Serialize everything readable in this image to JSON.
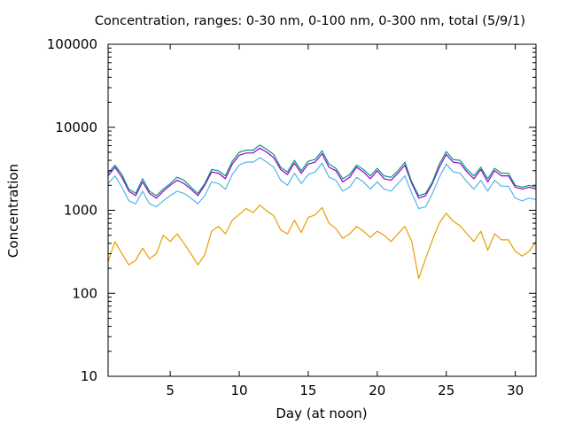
{
  "chart_data": {
    "type": "line",
    "title": "Concentration, ranges: 0-30 nm, 0-100 nm, 0-300 nm, total (5/9/1)",
    "xlabel": "Day (at noon)",
    "ylabel": "Concentration",
    "xlim": [
      0.5,
      31.5
    ],
    "ylim": [
      10,
      100000
    ],
    "yscale": "log",
    "grid": false,
    "x_ticks": [
      5,
      10,
      15,
      20,
      25,
      30
    ],
    "x_tick_labels": [
      "5",
      "10",
      "15",
      "20",
      "25",
      "30"
    ],
    "y_ticks": [
      10,
      100,
      1000,
      10000,
      100000
    ],
    "y_tick_labels": [
      "10",
      "100",
      "1000",
      "10000",
      "100000"
    ],
    "x": [
      0.5,
      1,
      1.5,
      2,
      2.5,
      3,
      3.5,
      4,
      4.5,
      5,
      5.5,
      6,
      6.5,
      7,
      7.5,
      8,
      8.5,
      9,
      9.5,
      10,
      10.5,
      11,
      11.5,
      12,
      12.5,
      13,
      13.5,
      14,
      14.5,
      15,
      15.5,
      16,
      16.5,
      17,
      17.5,
      18,
      18.5,
      19,
      19.5,
      20,
      20.5,
      21,
      21.5,
      22,
      22.5,
      23,
      23.5,
      24,
      24.5,
      25,
      25.5,
      26,
      26.5,
      27,
      27.5,
      28,
      28.5,
      29,
      29.5,
      30,
      30.5,
      31,
      31.5
    ],
    "series": [
      {
        "color": "#9400d3",
        "values": [
          2600,
          3300,
          2500,
          1700,
          1500,
          2200,
          1600,
          1400,
          1700,
          2000,
          2300,
          2100,
          1800,
          1500,
          2000,
          2900,
          2800,
          2400,
          3600,
          4600,
          4900,
          4900,
          5600,
          5000,
          4300,
          3100,
          2700,
          3700,
          2800,
          3600,
          3800,
          4800,
          3300,
          3000,
          2200,
          2500,
          3300,
          2900,
          2400,
          3000,
          2400,
          2300,
          2800,
          3500,
          2100,
          1400,
          1500,
          2100,
          3300,
          4700,
          3800,
          3700,
          2900,
          2400,
          3100,
          2200,
          3000,
          2600,
          2600,
          1900,
          1800,
          1900,
          1800
        ]
      },
      {
        "color": "#009e73",
        "values": [
          2800,
          3500,
          2700,
          1800,
          1600,
          2400,
          1700,
          1500,
          1800,
          2100,
          2500,
          2300,
          1900,
          1600,
          2100,
          3100,
          3000,
          2600,
          3900,
          5000,
          5300,
          5300,
          6100,
          5400,
          4700,
          3300,
          2900,
          4000,
          3000,
          3900,
          4100,
          5200,
          3600,
          3200,
          2400,
          2700,
          3500,
          3100,
          2600,
          3200,
          2600,
          2500,
          3000,
          3800,
          2200,
          1500,
          1600,
          2200,
          3600,
          5100,
          4100,
          4000,
          3100,
          2600,
          3300,
          2400,
          3200,
          2800,
          2800,
          2000,
          1900,
          2000,
          1900
        ]
      },
      {
        "color": "#56b4e9",
        "values": [
          2100,
          2600,
          1900,
          1300,
          1200,
          1700,
          1200,
          1100,
          1300,
          1500,
          1700,
          1600,
          1400,
          1200,
          1500,
          2200,
          2100,
          1800,
          2700,
          3500,
          3800,
          3800,
          4300,
          3800,
          3300,
          2300,
          2000,
          2800,
          2100,
          2700,
          2900,
          3700,
          2500,
          2300,
          1700,
          1900,
          2500,
          2200,
          1800,
          2200,
          1800,
          1700,
          2100,
          2600,
          1600,
          1050,
          1100,
          1600,
          2500,
          3600,
          2900,
          2800,
          2200,
          1800,
          2300,
          1700,
          2300,
          1950,
          1950,
          1400,
          1300,
          1400,
          1350
        ]
      },
      {
        "color": "#e69f00",
        "values": [
          240,
          420,
          300,
          220,
          250,
          350,
          260,
          300,
          500,
          420,
          520,
          400,
          300,
          220,
          290,
          560,
          640,
          520,
          760,
          890,
          1050,
          940,
          1150,
          980,
          860,
          580,
          520,
          760,
          540,
          820,
          880,
          1080,
          700,
          600,
          460,
          520,
          640,
          560,
          470,
          560,
          500,
          420,
          520,
          640,
          420,
          150,
          260,
          440,
          700,
          920,
          740,
          650,
          520,
          420,
          560,
          330,
          520,
          440,
          440,
          320,
          280,
          320,
          420
        ]
      }
    ]
  }
}
